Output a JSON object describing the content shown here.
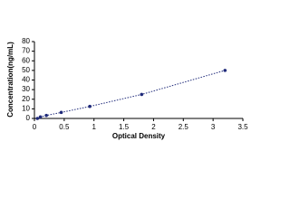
{
  "chart_data": {
    "type": "scatter",
    "xlabel": "Optical Density",
    "ylabel": "Concentration(ng/mL)",
    "x": [
      0.05,
      0.1,
      0.2,
      0.45,
      0.93,
      1.8,
      3.2
    ],
    "series": [
      {
        "color": "#1f2a7a",
        "values": [
          0,
          1.56,
          3.12,
          6.25,
          12.5,
          25,
          50
        ]
      }
    ],
    "line": true,
    "xlim": [
      0,
      3.5
    ],
    "xticks": [
      0,
      0.5,
      1,
      1.5,
      2,
      2.5,
      3,
      3.5
    ],
    "ylim": [
      0,
      80
    ],
    "yticks": [
      0,
      10,
      20,
      30,
      40,
      50,
      60,
      70,
      80
    ]
  }
}
